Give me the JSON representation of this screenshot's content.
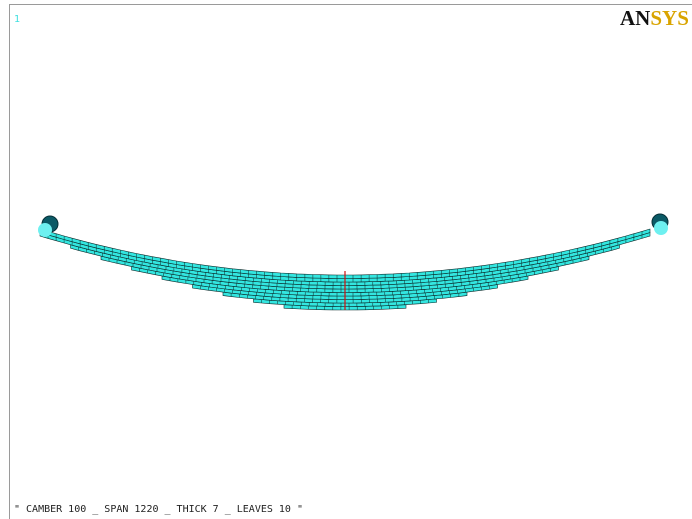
{
  "window_number": "1",
  "logo": {
    "dark": "AN",
    "gold": "SYS"
  },
  "caption": "\" CAMBER 100 _ SPAN 1220 _ THICK 7 _ LEAVES 10 \""
}
